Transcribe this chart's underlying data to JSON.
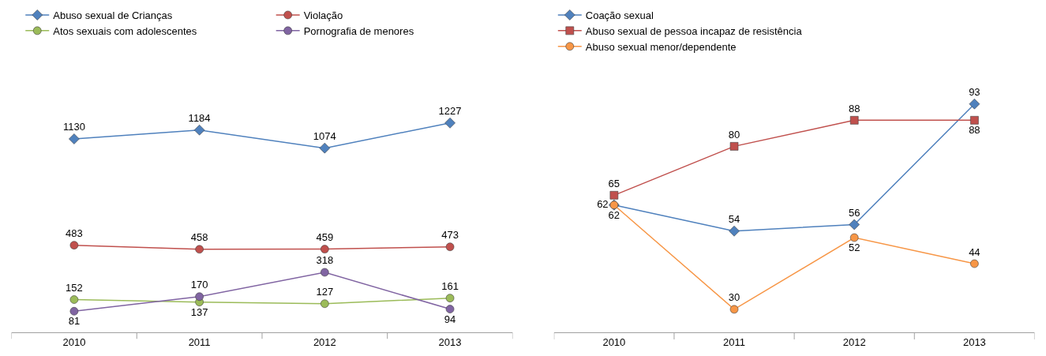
{
  "chart_data": [
    {
      "type": "line",
      "categories": [
        "2010",
        "2011",
        "2012",
        "2013"
      ],
      "data_labels": true,
      "legend": "top",
      "marker": "circle",
      "series": [
        {
          "name": "Abuso sexual de Crianças",
          "color": "#4f81bd",
          "marker": "diamond",
          "values": [
            1130,
            1184,
            1074,
            1227
          ]
        },
        {
          "name": "Violação",
          "color": "#c0504d",
          "values": [
            483,
            458,
            459,
            473
          ]
        },
        {
          "name": "Atos sexuais com adolescentes",
          "color": "#9bbb59",
          "values": [
            152,
            137,
            127,
            161
          ]
        },
        {
          "name": "Pornografia de menores",
          "color": "#8064a2",
          "values": [
            81,
            170,
            318,
            94
          ]
        }
      ]
    },
    {
      "type": "line",
      "categories": [
        "2010",
        "2011",
        "2012",
        "2013"
      ],
      "data_labels": true,
      "legend": "top left",
      "marker": "circle",
      "series": [
        {
          "name": "Coação sexual",
          "color": "#4f81bd",
          "marker": "diamond",
          "values": [
            62,
            54,
            56,
            93
          ]
        },
        {
          "name": "Abuso sexual de pessoa incapaz de resistência",
          "color": "#c0504d",
          "marker": "square",
          "values": [
            65,
            80,
            88,
            88
          ]
        },
        {
          "name": "Abuso sexual menor/dependente",
          "color": "#f79646",
          "values": [
            62,
            30,
            52,
            44
          ]
        }
      ]
    }
  ]
}
